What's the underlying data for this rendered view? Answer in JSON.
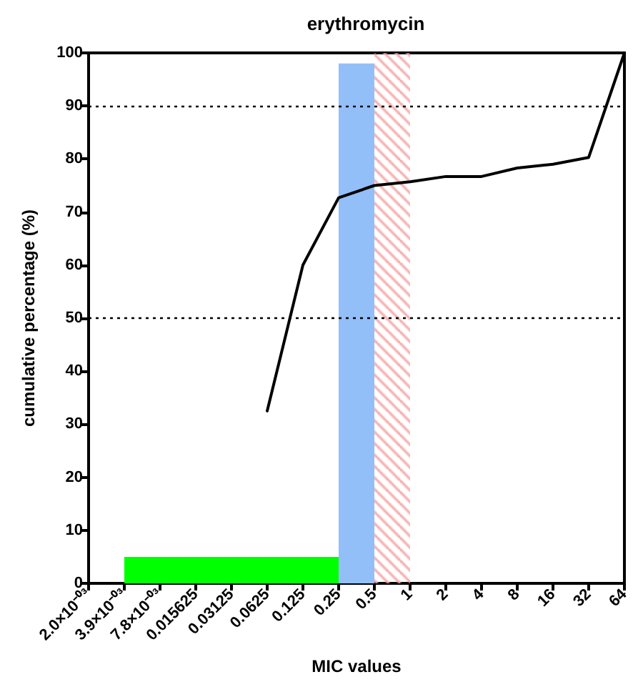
{
  "chart_data": {
    "type": "line",
    "title": "erythromycin",
    "xlabel": "MIC values",
    "ylabel": "cumulative percentage (%)",
    "log": "x",
    "xlim": [
      0.001953125,
      64
    ],
    "xticks": [
      {
        "value": 0.001953125,
        "label": "2.0×10⁻⁰³"
      },
      {
        "value": 0.00390625,
        "label": "3.9×10⁻⁰³"
      },
      {
        "value": 0.0078125,
        "label": "7.8×10⁻⁰³"
      },
      0.015625,
      0.03125,
      0.0625,
      0.125,
      0.25,
      0.5,
      1,
      2,
      4,
      8,
      16,
      32,
      64
    ],
    "ylim": [
      0,
      100
    ],
    "yticks": [
      0,
      10,
      20,
      30,
      40,
      50,
      60,
      70,
      80,
      90,
      100
    ],
    "grid": false,
    "legend": false,
    "marker": "none",
    "series": [
      {
        "type": "area",
        "color": "#00ff00",
        "x": [
          0.00390625,
          0.25
        ],
        "values": [
          5,
          5
        ]
      },
      {
        "type": "area",
        "color": "#93bff8",
        "x": [
          0.25,
          0.5
        ],
        "values": [
          98,
          98
        ]
      },
      {
        "type": "line",
        "color": "#000000",
        "line_style": "solid",
        "x": [
          0.0625,
          0.125,
          0.25,
          0.5,
          1,
          2,
          4,
          8,
          16,
          32,
          64
        ],
        "values": [
          32.5,
          60,
          72.7,
          75,
          75.7,
          76.7,
          76.7,
          78.3,
          79,
          80.3,
          100
        ]
      }
    ],
    "bands": [
      {
        "axis": "x",
        "from": 0.5,
        "to": 1,
        "color": "#f4a0a0"
      }
    ],
    "ref_lines": [
      {
        "axis": "y",
        "value": 50,
        "line_style": "dotted",
        "color": "#000000"
      },
      {
        "axis": "y",
        "value": 90,
        "line_style": "dotted",
        "color": "#000000"
      }
    ]
  }
}
